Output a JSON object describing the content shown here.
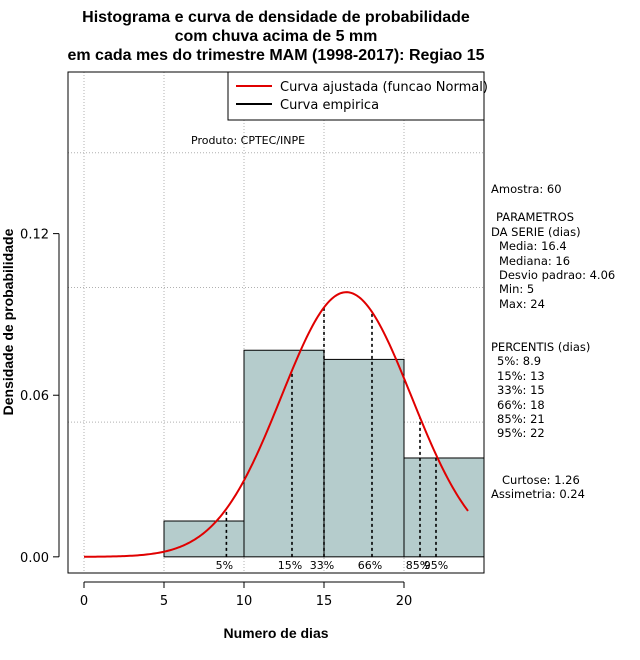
{
  "title_lines": [
    "Histograma e curva de densidade de probabilidade",
    "com chuva acima de 5 mm",
    "em cada mes do trimestre MAM (1998-2017): Regiao 15"
  ],
  "legend": {
    "fitted": "Curva ajustada (funcao Normal)",
    "empirical": "Curva empirica",
    "fitted_color": "#e00000",
    "empirical_color": "#000000"
  },
  "producer": "Produto: CPTEC/INPE",
  "stats": {
    "sample": "Amostra: 60",
    "params_title_1": "PARAMETROS",
    "params_title_2": "DA SERIE (dias)",
    "mean": "Media: 16.4",
    "median": "Mediana: 16",
    "sd": "Desvio padrao: 4.06",
    "min": "Min: 5",
    "max": "Max: 24",
    "percentiles_title": "PERCENTIS (dias)",
    "p5": "5%: 8.9",
    "p15": "15%: 13",
    "p33": "33%: 15",
    "p66": "66%: 18",
    "p85": "85%: 21",
    "p95": "95%: 22",
    "kurtosis": "Curtose: 1.26",
    "skewness": "Assimetria: 0.24"
  },
  "chart_data": {
    "type": "histogram",
    "xlabel": "Numero de dias",
    "ylabel": "Densidade de probabilidade",
    "xlim": [
      -1,
      25
    ],
    "ylim": [
      -0.006,
      0.18
    ],
    "xticks": [
      0,
      5,
      10,
      15,
      20
    ],
    "yticks": [
      0.0,
      0.06,
      0.12
    ],
    "ytick_labels": [
      "0.00",
      "0.06",
      "0.12"
    ],
    "grid_x": [
      0,
      5,
      10,
      15,
      20
    ],
    "grid_y": [
      0.05,
      0.1,
      0.15
    ],
    "bins": [
      {
        "start": 5,
        "end": 10,
        "density": 0.0133
      },
      {
        "start": 10,
        "end": 15,
        "density": 0.0767
      },
      {
        "start": 15,
        "end": 20,
        "density": 0.0733
      },
      {
        "start": 20,
        "end": 25,
        "density": 0.0367
      }
    ],
    "bar_color": "#b5cccc",
    "normal_fit": {
      "mean": 16.4,
      "sd": 4.06,
      "x_start": 0,
      "x_end": 24
    },
    "percentiles": [
      {
        "label": "5%",
        "value": 8.9
      },
      {
        "label": "15%",
        "value": 13
      },
      {
        "label": "33%",
        "value": 15
      },
      {
        "label": "66%",
        "value": 18
      },
      {
        "label": "85%",
        "value": 21
      },
      {
        "label": "95%",
        "value": 22
      }
    ]
  }
}
